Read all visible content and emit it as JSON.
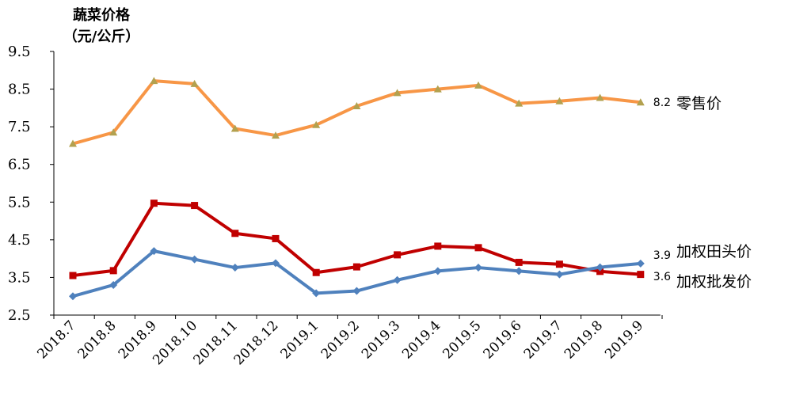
{
  "chart_data": {
    "type": "line",
    "ylabel_lines": [
      "蔬菜价格",
      "（元/公斤）"
    ],
    "ylim": [
      2.5,
      9.5
    ],
    "yticks": [
      "9.5",
      "8.5",
      "7.5",
      "6.5",
      "5.5",
      "4.5",
      "3.5",
      "2.5"
    ],
    "ytick_values": [
      9.5,
      8.5,
      7.5,
      6.5,
      5.5,
      4.5,
      3.5,
      2.5
    ],
    "categories": [
      "2018.7",
      "2018.8",
      "2018.9",
      "2018.10",
      "2018.11",
      "2018.12",
      "2019.1",
      "2019.2",
      "2019.3",
      "2019.4",
      "2019.5",
      "2019.6",
      "2019.7",
      "2019.8",
      "2019.9"
    ],
    "grid": false,
    "series": [
      {
        "name": "零售价",
        "color": "#F79646",
        "marker": "triangle",
        "marker_color": "#B3A14F",
        "end_label": "8.2",
        "values": [
          7.05,
          7.35,
          8.72,
          8.64,
          7.45,
          7.27,
          7.55,
          8.05,
          8.4,
          8.5,
          8.6,
          8.12,
          8.18,
          8.27,
          8.15
        ]
      },
      {
        "name": "加权批发价",
        "color": "#C00000",
        "marker": "square",
        "marker_color": "#C00000",
        "end_label": "3.6",
        "values": [
          3.55,
          3.68,
          5.47,
          5.41,
          4.67,
          4.53,
          3.63,
          3.78,
          4.1,
          4.33,
          4.29,
          3.9,
          3.85,
          3.66,
          3.58
        ]
      },
      {
        "name": "加权田头价",
        "color": "#4F81BD",
        "marker": "diamond",
        "marker_color": "#4F81BD",
        "end_label": "3.9",
        "values": [
          3.0,
          3.3,
          4.2,
          3.98,
          3.76,
          3.88,
          3.08,
          3.14,
          3.43,
          3.67,
          3.76,
          3.67,
          3.58,
          3.77,
          3.87
        ]
      }
    ]
  }
}
